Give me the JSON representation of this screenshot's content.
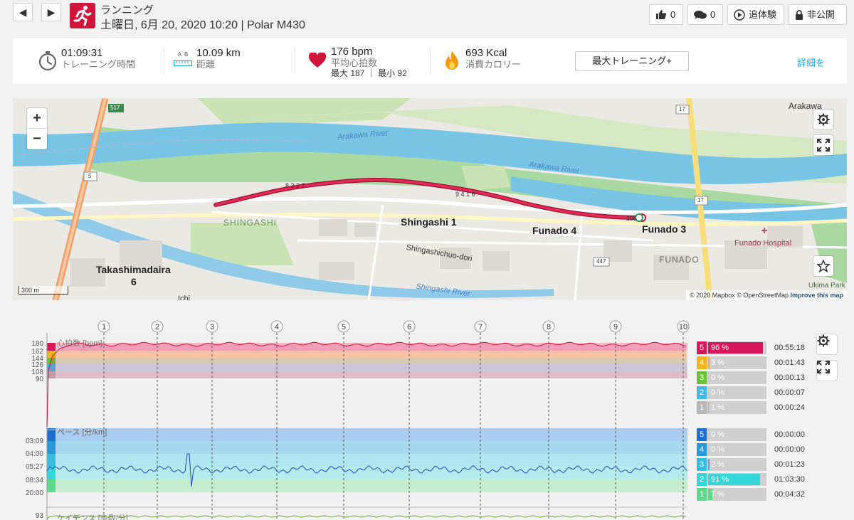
{
  "header": {
    "activity_type": "ランニング",
    "date_device": "土曜日, 6月 20, 2020 10:20 | Polar M430",
    "likes": "0",
    "comments": "0",
    "replay_label": "追体験",
    "privacy_label": "非公開"
  },
  "summary": {
    "duration_value": "01:09:31",
    "duration_label": "トレーニング時間",
    "distance_value": "10.09 km",
    "distance_label": "距離",
    "distance_ab": "A  B",
    "hr_value": "176 bpm",
    "hr_label": "平均心拍数",
    "hr_range": "最大 187 ｜ 最小 92",
    "calories_value": "693 Kcal",
    "calories_label": "消費カロリー",
    "max_training_button": "最大トレーニング+",
    "details_link": "詳細を"
  },
  "map": {
    "zoom_in": "+",
    "zoom_out": "−",
    "scale": "300 m",
    "attribution_mapbox": "© 2020 Mapbox",
    "attribution_osm": "© OpenStreetMap",
    "attribution_improve": "Improve this map",
    "labels": {
      "arakawa_river_1": "Arakawa River",
      "arakawa_river_2": "Arakawa River",
      "arakawa_top": "Arakawa",
      "shingashi_park": "SHINGASHI",
      "shingashi_1": "Shingashi 1",
      "funado_4": "Funado 4",
      "funado_3": "Funado 3",
      "funado": "FUNADO",
      "funado_hospital": "Funado Hospital",
      "shingashichuo": "Shingashichuo-dori",
      "takashimadaira": "Takashimadaira",
      "takashimadaira_6": "6",
      "shingashi_river": "Shingashi River",
      "ukima_park": "Ukima Park",
      "ichi": "Ichi",
      "route_517": "517",
      "route_5": "5",
      "route_17a": "17",
      "route_17b": "17",
      "route_447": "447",
      "km_827": "8 3 2 7",
      "km_9416": "9 4 1 6",
      "km_105": "105"
    }
  },
  "charts": {
    "km_markers": [
      "1",
      "2",
      "3",
      "4",
      "5",
      "6",
      "7",
      "8",
      "9",
      "10"
    ],
    "hr": {
      "label": "心拍数 [bpm]",
      "ticks": [
        "180",
        "162",
        "144",
        "126",
        "108",
        "90"
      ]
    },
    "pace": {
      "label": "ペース [分/km]",
      "ticks": [
        "03:09",
        "04:00",
        "05:27",
        "08:34",
        "20:00"
      ]
    },
    "cadence": {
      "label": "ケイデンス [歩数/分]",
      "ticks": [
        "93"
      ]
    },
    "hr_zones": [
      {
        "zone": "5",
        "pct": "96 %",
        "fraction": 0.96,
        "time": "00:55:18",
        "color": "#d6175a"
      },
      {
        "zone": "4",
        "pct": "3 %",
        "fraction": 0.03,
        "time": "00:01:43",
        "color": "#f2b51c"
      },
      {
        "zone": "3",
        "pct": "0 %",
        "fraction": 0.0,
        "time": "00:00:13",
        "color": "#6cc23a"
      },
      {
        "zone": "2",
        "pct": "0 %",
        "fraction": 0.0,
        "time": "00:00:07",
        "color": "#43b7e6"
      },
      {
        "zone": "1",
        "pct": "1 %",
        "fraction": 0.01,
        "time": "00:00:24",
        "color": "#b7b7b7"
      }
    ],
    "pace_zones": [
      {
        "zone": "5",
        "pct": "0 %",
        "fraction": 0.0,
        "time": "00:00:00",
        "color": "#1f6ed1"
      },
      {
        "zone": "4",
        "pct": "0 %",
        "fraction": 0.0,
        "time": "00:00:00",
        "color": "#2699d8"
      },
      {
        "zone": "3",
        "pct": "2 %",
        "fraction": 0.02,
        "time": "00:01:23",
        "color": "#35bde0"
      },
      {
        "zone": "2",
        "pct": "91 %",
        "fraction": 0.91,
        "time": "01:03:30",
        "color": "#35d6d8"
      },
      {
        "zone": "1",
        "pct": "7 %",
        "fraction": 0.07,
        "time": "00:04:32",
        "color": "#5fd88a"
      }
    ]
  }
}
